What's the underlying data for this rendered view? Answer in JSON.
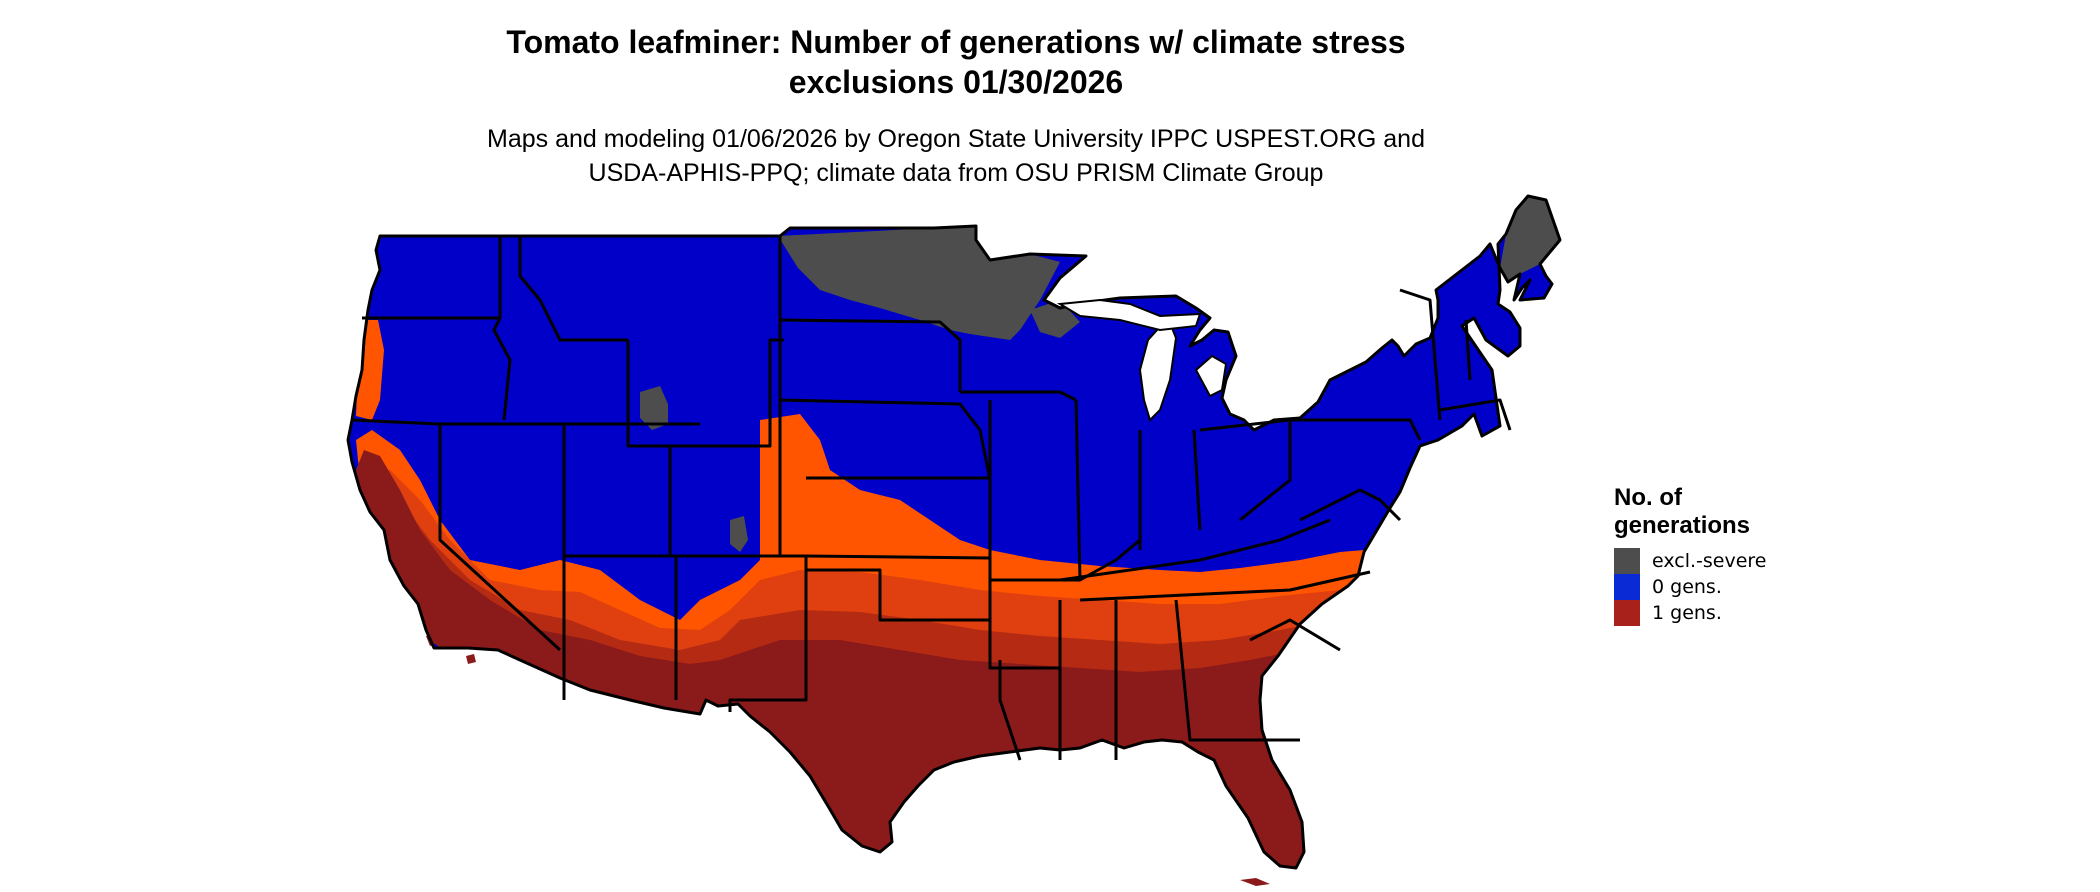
{
  "title_line1": "Tomato leafminer: Number of generations w/ climate stress",
  "title_line2": "exclusions 01/30/2026",
  "subtitle_line1": "Maps and modeling 01/06/2026 by Oregon State University IPPC USPEST.ORG and",
  "subtitle_line2": "USDA-APHIS-PPQ; climate data from OSU PRISM Climate Group",
  "legend": {
    "title_line1": "No. of",
    "title_line2": "generations",
    "items": [
      {
        "label": "excl.-severe",
        "color": "#4d4d4d"
      },
      {
        "label": "0 gens.",
        "color": "#0a2ad6"
      },
      {
        "label": "1 gens.",
        "color": "#a8211a"
      }
    ]
  },
  "map_colors": {
    "zero_generations": "#0000c8",
    "excluded_severe": "#4d4d4d",
    "one_generation_dark": "#8b1a1a",
    "one_generation_mid": "#b52a12",
    "one_generation_light": "#e0400f",
    "one_generation_edge": "#ff5500",
    "state_borders": "#000000"
  }
}
